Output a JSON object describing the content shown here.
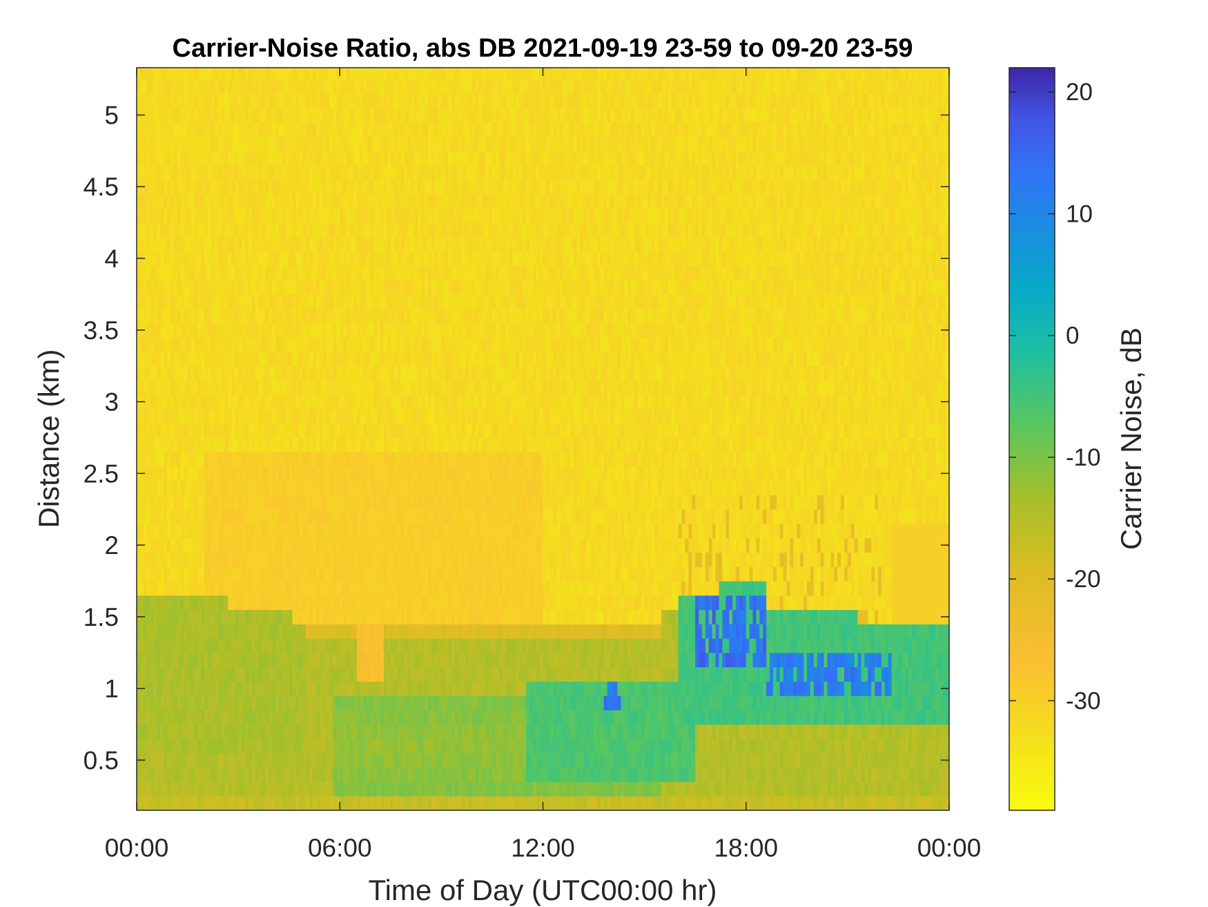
{
  "chart_data": {
    "type": "heatmap",
    "title": "Carrier-Noise Ratio, abs DB 2021-09-19 23-59 to 09-20 23-59",
    "xlabel": "Time of Day (UTC00:00 hr)",
    "ylabel": "Distance (km)",
    "colorbar_label": "Carrier Noise, dB",
    "x_tick_labels": [
      "00:00",
      "06:00",
      "12:00",
      "18:00",
      "00:00"
    ],
    "x_tick_hours": [
      0,
      6,
      12,
      18,
      24
    ],
    "xlim_hours": [
      0,
      24
    ],
    "y_ticks": [
      0.5,
      1,
      1.5,
      2,
      2.5,
      3,
      3.5,
      4,
      4.5,
      5
    ],
    "y_tick_labels": [
      "0.5",
      "1",
      "1.5",
      "2",
      "2.5",
      "3",
      "3.5",
      "4",
      "4.5",
      "5"
    ],
    "ylim": [
      0.15,
      5.33
    ],
    "colorbar_ticks": [
      20,
      10,
      0,
      -10,
      -20,
      -30
    ],
    "colorbar_tick_labels": [
      "20",
      "10",
      "0",
      "-10",
      "-20",
      "-30"
    ],
    "color_limits": [
      -39,
      22
    ],
    "colormap": "parula",
    "regions": [
      {
        "description": "upper background",
        "distance_km": [
          1.5,
          5.33
        ],
        "hours": [
          0,
          24
        ],
        "value_db": -32
      },
      {
        "description": "near-field band",
        "distance_km": [
          0.15,
          1.5
        ],
        "hours": [
          0,
          24
        ],
        "value_db": -14
      },
      {
        "description": "strong returns",
        "distance_km": [
          1.0,
          1.7
        ],
        "hours": [
          16.5,
          22.3
        ],
        "value_db": 14
      }
    ]
  }
}
